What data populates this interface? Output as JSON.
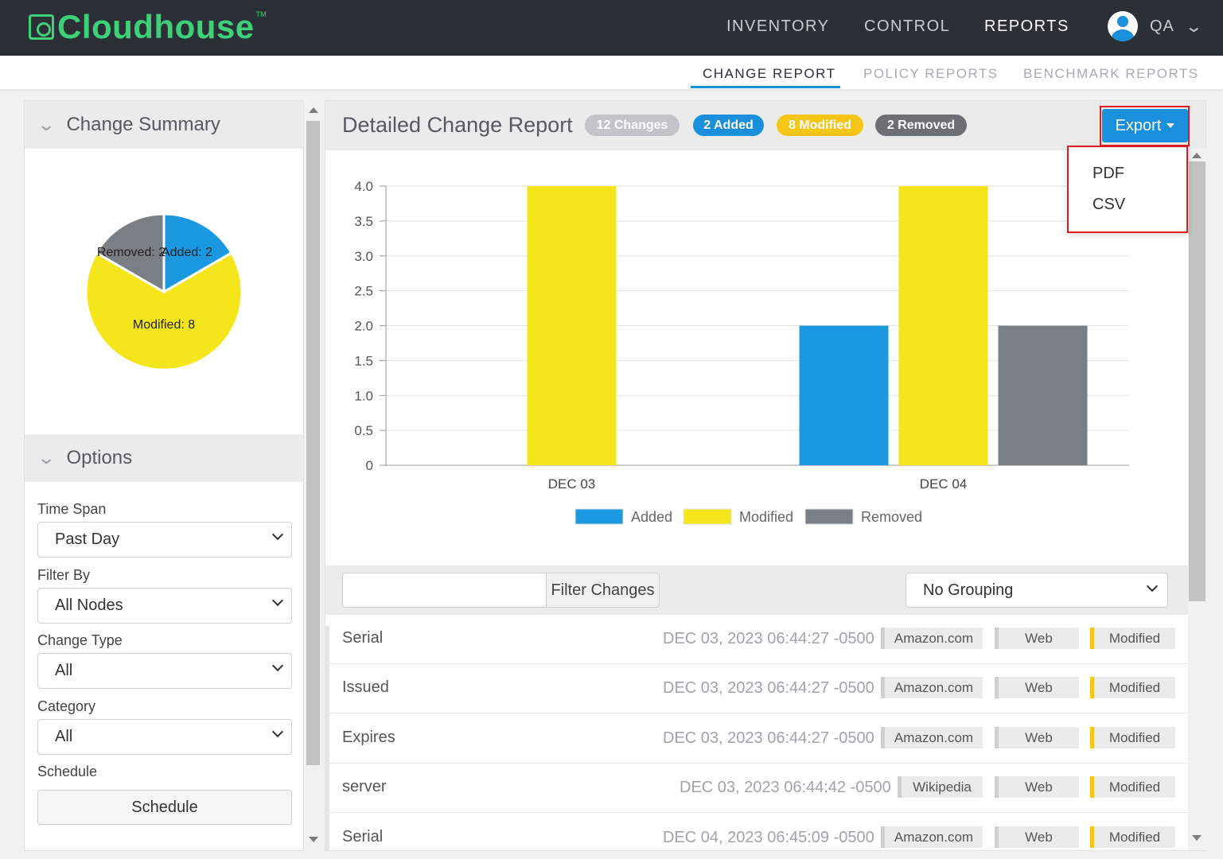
{
  "app": {
    "logo_text": "Cloudhouse",
    "logo_tm": "TM"
  },
  "topnav": {
    "items": [
      {
        "label": "INVENTORY"
      },
      {
        "label": "CONTROL"
      },
      {
        "label": "REPORTS"
      }
    ],
    "active": "REPORTS",
    "user": "QA"
  },
  "subnav": {
    "items": [
      {
        "label": "CHANGE REPORT"
      },
      {
        "label": "POLICY REPORTS"
      },
      {
        "label": "BENCHMARK REPORTS"
      }
    ],
    "active": "CHANGE REPORT"
  },
  "summary": {
    "title": "Change Summary",
    "pie": {
      "slices": [
        {
          "label": "Added",
          "value": 2,
          "text": "Added: 2",
          "color": "#1a98e0"
        },
        {
          "label": "Modified",
          "value": 8,
          "text": "Modified: 8",
          "color": "#f5e61c"
        },
        {
          "label": "Removed",
          "value": 2,
          "text": "Removed: 2",
          "color": "#7a7f85"
        }
      ]
    }
  },
  "options": {
    "title": "Options",
    "time_span_label": "Time Span",
    "time_span_value": "Past Day",
    "filter_by_label": "Filter By",
    "filter_by_value": "All Nodes",
    "change_type_label": "Change Type",
    "change_type_value": "All",
    "category_label": "Category",
    "category_value": "All",
    "schedule_label": "Schedule",
    "schedule_button": "Schedule"
  },
  "report": {
    "title": "Detailed Change Report",
    "badges": [
      {
        "text": "12 Changes",
        "bg": "#c2c4c7",
        "fg": "#ffffff"
      },
      {
        "text": "2 Added",
        "bg": "#1a8fdc",
        "fg": "#ffffff"
      },
      {
        "text": "8 Modified",
        "bg": "#f5c518",
        "fg": "#ffffff"
      },
      {
        "text": "2 Removed",
        "bg": "#6c7075",
        "fg": "#ffffff"
      }
    ],
    "export_label": "Export",
    "export_options": [
      "PDF",
      "CSV"
    ],
    "filter_placeholder": "",
    "filter_button": "Filter Changes",
    "grouping_value": "No Grouping"
  },
  "chart_data": {
    "type": "bar",
    "categories": [
      "DEC 03",
      "DEC 04"
    ],
    "series": [
      {
        "name": "Added",
        "values": [
          0,
          2
        ],
        "color": "#1a98e0"
      },
      {
        "name": "Modified",
        "values": [
          4,
          4
        ],
        "color": "#f5e61c"
      },
      {
        "name": "Removed",
        "values": [
          0,
          2
        ],
        "color": "#7a7f85"
      }
    ],
    "ylim": [
      0,
      4
    ],
    "yticks": [
      "0",
      "0.5",
      "1.0",
      "1.5",
      "2.0",
      "2.5",
      "3.0",
      "3.5",
      "4.0"
    ],
    "legend_position": "bottom",
    "grid": true
  },
  "rows": [
    {
      "name": "Serial",
      "timestamp": "DEC 03, 2023 06:44:27 -0500",
      "node": "Amazon.com",
      "category": "Web",
      "type": "Modified"
    },
    {
      "name": "Issued",
      "timestamp": "DEC 03, 2023 06:44:27 -0500",
      "node": "Amazon.com",
      "category": "Web",
      "type": "Modified"
    },
    {
      "name": "Expires",
      "timestamp": "DEC 03, 2023 06:44:27 -0500",
      "node": "Amazon.com",
      "category": "Web",
      "type": "Modified"
    },
    {
      "name": "server",
      "timestamp": "DEC 03, 2023 06:44:42 -0500",
      "node": "Wikipedia",
      "category": "Web",
      "type": "Modified"
    },
    {
      "name": "Serial",
      "timestamp": "DEC 04, 2023 06:45:09 -0500",
      "node": "Amazon.com",
      "category": "Web",
      "type": "Modified"
    }
  ]
}
